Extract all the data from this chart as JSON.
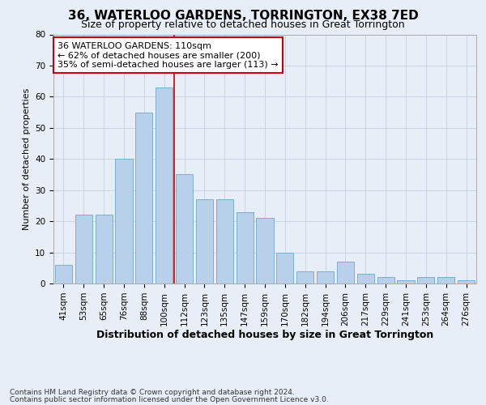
{
  "title": "36, WATERLOO GARDENS, TORRINGTON, EX38 7ED",
  "subtitle": "Size of property relative to detached houses in Great Torrington",
  "xlabel": "Distribution of detached houses by size in Great Torrington",
  "ylabel": "Number of detached properties",
  "categories": [
    "41sqm",
    "53sqm",
    "65sqm",
    "76sqm",
    "88sqm",
    "100sqm",
    "112sqm",
    "123sqm",
    "135sqm",
    "147sqm",
    "159sqm",
    "170sqm",
    "182sqm",
    "194sqm",
    "206sqm",
    "217sqm",
    "229sqm",
    "241sqm",
    "253sqm",
    "264sqm",
    "276sqm"
  ],
  "values": [
    6,
    22,
    22,
    40,
    55,
    63,
    35,
    27,
    27,
    23,
    21,
    10,
    4,
    4,
    7,
    3,
    2,
    1,
    2,
    2,
    1
  ],
  "bar_color": "#b8d0ea",
  "bar_edge_color": "#7aaecf",
  "vline_color": "#cc0000",
  "vline_x_index": 6,
  "annotation_text": "36 WATERLOO GARDENS: 110sqm\n← 62% of detached houses are smaller (200)\n35% of semi-detached houses are larger (113) →",
  "annotation_box_facecolor": "#ffffff",
  "annotation_box_edgecolor": "#cc0000",
  "ylim": [
    0,
    80
  ],
  "yticks": [
    0,
    10,
    20,
    30,
    40,
    50,
    60,
    70,
    80
  ],
  "footer1": "Contains HM Land Registry data © Crown copyright and database right 2024.",
  "footer2": "Contains public sector information licensed under the Open Government Licence v3.0.",
  "bg_color": "#e8eef7",
  "plot_bg_color": "#e8eef7",
  "title_fontsize": 11,
  "subtitle_fontsize": 9,
  "xlabel_fontsize": 9,
  "ylabel_fontsize": 8,
  "tick_fontsize": 7.5,
  "annotation_fontsize": 8,
  "footer_fontsize": 6.5
}
